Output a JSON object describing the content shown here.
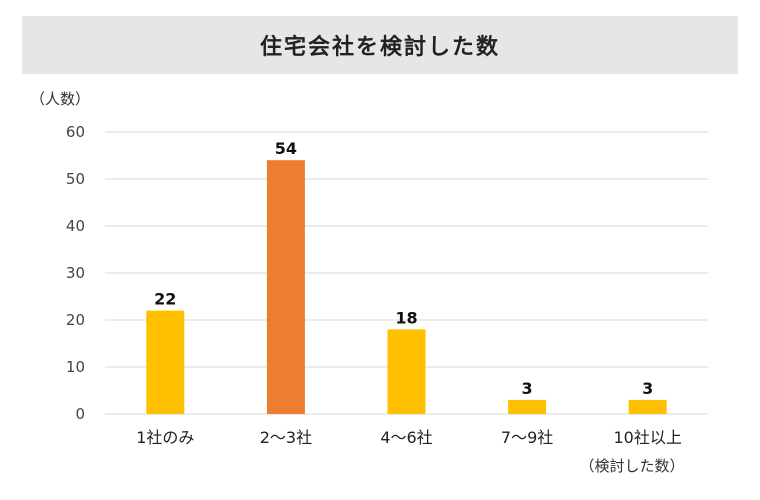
{
  "chart_data": {
    "type": "bar",
    "title": "住宅会社を検討した数",
    "ylabel": "（人数）",
    "xlabel": "（検討した数）",
    "categories": [
      "1社のみ",
      "2〜3社",
      "4〜6社",
      "7〜9社",
      "10社以上"
    ],
    "values": [
      22,
      54,
      18,
      3,
      3
    ],
    "data_labels": [
      "22",
      "54",
      "18",
      "3",
      "3"
    ],
    "ylim": [
      0,
      60
    ],
    "yticks": [
      "0",
      "10",
      "20",
      "30",
      "40",
      "50",
      "60"
    ],
    "grid": true,
    "colors": {
      "bar": "#ffc000",
      "highlight": "#ed7d31",
      "grid": "#d9d9d9",
      "title_bg": "#e6e6e6"
    },
    "highlight_index": 1
  }
}
